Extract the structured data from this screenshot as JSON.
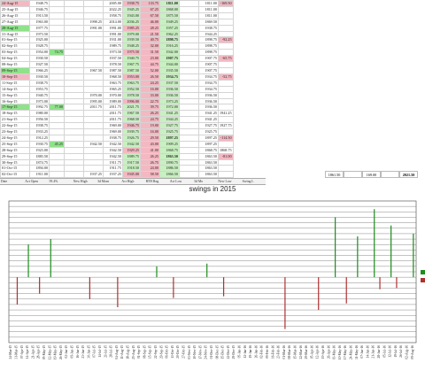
{
  "columns": [
    "Date",
    "Act Open",
    "59.4%",
    "New High",
    "3d Mom",
    "Act High",
    "RTH Rng",
    "Act Low",
    "3d Mo",
    "New Low",
    "Swing L"
  ],
  "rows": [
    {
      "date": "24-Aug-15",
      "cells": [
        "1948.75",
        "",
        "",
        "",
        "2005.00",
        "1938.75",
        "133.75",
        "1811.00",
        "",
        "1811.00",
        "-169.50"
      ]
    },
    {
      "date": "25-Aug-15",
      "cells": [
        "1946.75",
        "",
        "",
        "",
        "2022.25",
        "1945.25",
        "67.25",
        "1868.00",
        "",
        "1811.00",
        ""
      ]
    },
    {
      "date": "26-Aug-15",
      "cells": [
        "1913.50",
        "",
        "",
        "",
        "1958.75",
        "1943.00",
        "67.50",
        "1875.50",
        "",
        "1811.00",
        ""
      ]
    },
    {
      "date": "27-Aug-15",
      "cells": [
        "1963.00",
        "",
        "",
        "1998.25",
        "2014.00",
        "2036.25",
        "46.00",
        "1949.25",
        "",
        "1869.50",
        ""
      ]
    },
    {
      "date": "28-Aug-15",
      "cells": [
        "1977.75",
        "",
        "",
        "1991.00",
        "1991.00",
        "1985.25",
        "28.25",
        "1957.25",
        "",
        "1938.75",
        ""
      ]
    },
    {
      "date": "31-Aug-15",
      "cells": [
        "1973.50",
        "",
        "",
        "",
        "1991.00",
        "1979.00",
        "21.50",
        "1962.25",
        "",
        "1944.25",
        ""
      ]
    },
    {
      "date": "01-Sep-15",
      "cells": [
        "1925.00",
        "",
        "",
        "",
        "1931.00",
        "1939.50",
        "40.75",
        "1898.75",
        "",
        "1898.75",
        "-92.25"
      ]
    },
    {
      "date": "02-Sep-15",
      "cells": [
        "1928.75",
        "",
        "",
        "",
        "1989.75",
        "1948.25",
        "32.00",
        "1916.25",
        "",
        "1898.75",
        ""
      ]
    },
    {
      "date": "03-Sep-15",
      "cells": [
        "1954.00",
        "74.75",
        "",
        "",
        "1973.50",
        "1975.50",
        "31.50",
        "1942.00",
        "",
        "1898.75",
        ""
      ]
    },
    {
      "date": "04-Sep-15",
      "cells": [
        "1930.50",
        "",
        "",
        "",
        "1937.50",
        "1940.75",
        "23.00",
        "1907.75",
        "",
        "1907.75",
        "-65.75"
      ]
    },
    {
      "date": "08-Sep-15",
      "cells": [
        "1927.50",
        "",
        "",
        "",
        "1978.50",
        "1967.75",
        "44.75",
        "1944.00",
        "",
        "1907.75",
        ""
      ]
    },
    {
      "date": "09-Sep-15",
      "cells": [
        "1966.25",
        "",
        "",
        "1967.50",
        "1987.50",
        "1987.50",
        "52.00",
        "1935.50",
        "",
        "1907.75",
        ""
      ]
    },
    {
      "date": "10-Sep-15",
      "cells": [
        "1930.50",
        "",
        "",
        "",
        "1968.50",
        "1953.00",
        "26.50",
        "1934.75",
        "",
        "1934.75",
        "-52.75"
      ]
    },
    {
      "date": "11-Sep-15",
      "cells": [
        "1938.75",
        "",
        "",
        "",
        "1963.75",
        "1963.75",
        "24.25",
        "1937.50",
        "",
        "1934.75",
        ""
      ]
    },
    {
      "date": "14-Sep-15",
      "cells": [
        "1953.75",
        "",
        "",
        "",
        "1965.25",
        "1952.50",
        "16.00",
        "1936.50",
        "",
        "1934.75",
        ""
      ]
    },
    {
      "date": "15-Sep-15",
      "cells": [
        "1940.75",
        "",
        "",
        "1970.00",
        "1970.00",
        "1978.50",
        "33.00",
        "1936.50",
        "",
        "1936.50",
        ""
      ]
    },
    {
      "date": "16-Sep-15",
      "cells": [
        "1973.00",
        "",
        "",
        "1995.00",
        "1989.00",
        "1996.00",
        "22.75",
        "1973.25",
        "",
        "1936.50",
        ""
      ]
    },
    {
      "date": "17-Sep-15",
      "cells": [
        "1992.75",
        "77.00",
        "",
        "2011.75",
        "2011.75",
        "2021.75",
        "39.75",
        "1972.00",
        "",
        "1936.50",
        ""
      ]
    },
    {
      "date": "18-Sep-15",
      "cells": [
        "1980.00",
        "",
        "",
        "",
        "2011.75",
        "1967.50",
        "26.25",
        "1941.25",
        "",
        "1941.25",
        "1941.25"
      ]
    },
    {
      "date": "21-Sep-15",
      "cells": [
        "1956.50",
        "",
        "",
        "",
        "2011.75",
        "1968.50",
        "24.75",
        "1944.25",
        "",
        "1941.25",
        ""
      ]
    },
    {
      "date": "22-Sep-15",
      "cells": [
        "1938.75",
        "",
        "",
        "",
        "1969.00",
        "1946.75",
        "19.00",
        "1927.75",
        "",
        "1927.75",
        "1927.75"
      ]
    },
    {
      "date": "23-Sep-15",
      "cells": [
        "1933.25",
        "",
        "",
        "",
        "1969.00",
        "1939.75",
        "16.00",
        "1925.75",
        "",
        "1925.75",
        ""
      ]
    },
    {
      "date": "24-Sep-15",
      "cells": [
        "1912.25",
        "",
        "",
        "",
        "1938.75",
        "1926.75",
        "29.50",
        "1897.25",
        "",
        "1897.25",
        "-114.50"
      ]
    },
    {
      "date": "25-Sep-15",
      "cells": [
        "1930.75",
        "45.25",
        "",
        "1942.50",
        "1942.50",
        "1942.50",
        "43.00",
        "1909.25",
        "",
        "1897.25",
        ""
      ]
    },
    {
      "date": "28-Sep-15",
      "cells": [
        "1923.00",
        "",
        "",
        "",
        "1942.50",
        "1929.25",
        "41.00",
        "1868.75",
        "",
        "1868.75",
        "1868.75"
      ]
    },
    {
      "date": "29-Sep-15",
      "cells": [
        "1883.50",
        "",
        "",
        "",
        "1942.50",
        "1889.75",
        "26.25",
        "1863.50",
        "",
        "1863.50",
        "-81.00"
      ]
    },
    {
      "date": "30-Sep-15",
      "cells": [
        "1874.75",
        "",
        "",
        "",
        "1911.75",
        "1917.50",
        "26.75",
        "1890.75",
        "",
        "1863.50",
        ""
      ]
    },
    {
      "date": "01-Oct-15",
      "cells": [
        "1894.00",
        "",
        "",
        "",
        "1911.75",
        "1918.50",
        "24.00",
        "1886.50",
        "",
        "1863.50",
        ""
      ]
    },
    {
      "date": "02-Oct-15",
      "cells": [
        "1911.00",
        "",
        "",
        "1937.25",
        "1937.25",
        "1945.00",
        "58.50",
        "1866.50",
        "",
        "1863.50",
        ""
      ]
    },
    {
      "date": "05-Oct-15",
      "cells": [
        "1949.00",
        "",
        "",
        "1968.25",
        "1968.25",
        "1974.25",
        "33.25",
        "1941.00",
        "",
        "1863.50",
        ""
      ]
    },
    {
      "date": "06-Oct-15",
      "cells": [
        "1960.75",
        "",
        "",
        "1974.50",
        "1974.50",
        "1984.50",
        "30.75",
        "1953.50",
        "",
        "1866.50",
        ""
      ]
    },
    {
      "date": "07-Oct-15",
      "cells": [
        "1970.25",
        "",
        "",
        "1995.00",
        "1995.00",
        "1997.00",
        "26.00",
        "1968.25",
        "",
        "1941.00",
        ""
      ]
    },
    {
      "date": "08-Oct-15",
      "cells": [
        "1975.50",
        "",
        "",
        "1997.25",
        "1997.25",
        "2011.50",
        "42.00",
        "1964.00",
        "",
        "1951.50",
        ""
      ]
    },
    {
      "date": "09-Oct-15",
      "cells": [
        "1994.00",
        "",
        "",
        "2011.75",
        "2012.00",
        "2012.00",
        "20.25",
        "1991.75",
        "",
        "1964.00",
        ""
      ]
    },
    {
      "date": "12-Oct-15",
      "cells": [
        "2007.00",
        "",
        "",
        "2019.25",
        "2019.25",
        "2017.50",
        "17.25",
        "2000.25",
        "",
        "1964.00",
        ""
      ]
    },
    {
      "date": "13-Oct-15",
      "cells": [
        "2003.75",
        "",
        "",
        "",
        "2019.25",
        "2012.25",
        "24.00",
        "1990.25",
        "",
        "1964.00",
        ""
      ]
    },
    {
      "date": "14-Oct-15",
      "cells": [
        "1997.00",
        "",
        "",
        "",
        "2017.50",
        "2001.50",
        "23.50",
        "1979.75",
        "",
        "1979.75",
        ""
      ]
    }
  ],
  "summary": [
    "1861.50",
    "",
    "169.00",
    "",
    "2021.50"
  ],
  "header_labels": [
    "Date",
    "Act Open",
    "59.4%",
    "New High",
    "3d Mom",
    "Act High",
    "RTH Rng",
    "Act Low",
    "3d Mo",
    "New Low",
    "Swing L"
  ],
  "chart_data": {
    "type": "bar",
    "title": "swings in 2015",
    "categories": [
      "24-Mar-15",
      "31-Mar-15",
      "07-Apr-15",
      "14-Apr-15",
      "21-Apr-15",
      "28-Apr-15",
      "05-May-15",
      "12-May-15",
      "19-May-15",
      "26-May-15",
      "02-Jun-15",
      "09-Jun-15",
      "16-Jun-15",
      "23-Jun-15",
      "30-Jun-15",
      "07-Jul-15",
      "14-Jul-15",
      "21-Jul-15",
      "28-Jul-15",
      "04-Aug-15",
      "11-Aug-15",
      "18-Aug-15",
      "25-Aug-15",
      "01-Sep-15",
      "08-Sep-15",
      "15-Sep-15",
      "22-Sep-15",
      "29-Sep-15",
      "06-Oct-15",
      "13-Oct-15",
      "20-Oct-15",
      "27-Oct-15",
      "03-Nov-15",
      "10-Nov-15",
      "17-Nov-15",
      "24-Nov-15",
      "01-Dec-15",
      "08-Dec-15",
      "15-Dec-15",
      "22-Dec-15",
      "29-Dec-15",
      "05-Jan-16",
      "12-Jan-16",
      "19-Jan-16",
      "26-Jan-16",
      "02-Feb-16",
      "09-Feb-16",
      "16-Feb-16",
      "23-Feb-16",
      "01-Mar-16",
      "08-Mar-16",
      "15-Mar-16",
      "22-Mar-16",
      "29-Mar-16",
      "05-Apr-16",
      "12-Apr-16",
      "19-Apr-16",
      "26-Apr-16",
      "03-May-16",
      "10-May-16",
      "17-May-16",
      "24-May-16",
      "31-May-16",
      "07-Jun-16",
      "14-Jun-16",
      "21-Jun-16",
      "28-Jun-16",
      "05-Jul-16",
      "12-Jul-16",
      "19-Jul-16",
      "26-Jul-16",
      "02-Aug-16",
      "09-Aug-16"
    ],
    "values": [
      0,
      -50,
      0,
      60,
      0,
      -30,
      0,
      70,
      0,
      0,
      0,
      0,
      0,
      0,
      -40,
      0,
      0,
      0,
      0,
      -55,
      0,
      0,
      0,
      0,
      0,
      0,
      20,
      0,
      0,
      -38,
      0,
      0,
      0,
      0,
      0,
      25,
      0,
      0,
      -35,
      0,
      0,
      0,
      0,
      0,
      0,
      0,
      0,
      0,
      0,
      -95,
      0,
      0,
      0,
      0,
      0,
      -60,
      0,
      0,
      110,
      0,
      -48,
      0,
      75,
      0,
      0,
      125,
      -22,
      0,
      95,
      -20,
      0,
      0,
      80
    ],
    "up_color": "#1e8c1e",
    "down_color": "#b03030",
    "ylim": [
      -120,
      140
    ],
    "grid": true,
    "legend": "right"
  }
}
